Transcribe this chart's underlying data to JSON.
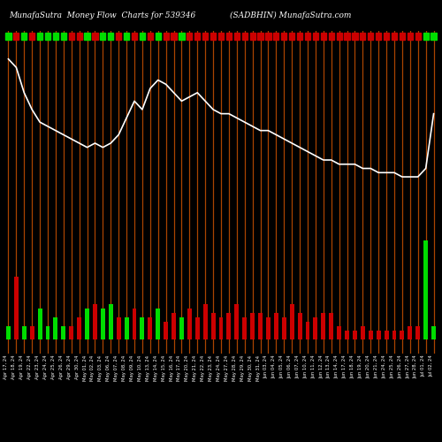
{
  "title_left": "MunafaSutra  Money Flow  Charts for 539346",
  "title_right": "(SADBHIN) MunafaSutra.com",
  "bg_color": "#000000",
  "line_color": "#ffffff",
  "bar_pos_color": "#00dd00",
  "bar_neg_color": "#cc0000",
  "vline_color": "#aa4400",
  "n_points": 55,
  "dates": [
    "Apr 17, 24",
    "Apr 18, 24",
    "Apr 19, 24",
    "Apr 22, 24",
    "Apr 23, 24",
    "Apr 24, 24",
    "Apr 25, 24",
    "Apr 26, 24",
    "Apr 29, 24",
    "Apr 30, 24",
    "May 01, 24",
    "May 02, 24",
    "May 03, 24",
    "May 06, 24",
    "May 07, 24",
    "May 08, 24",
    "May 09, 24",
    "May 10, 24",
    "May 13, 24",
    "May 14, 24",
    "May 15, 24",
    "May 16, 24",
    "May 17, 24",
    "May 20, 24",
    "May 21, 24",
    "May 22, 24",
    "May 23, 24",
    "May 24, 24",
    "May 27, 24",
    "May 28, 24",
    "May 29, 24",
    "May 30, 24",
    "May 31, 24",
    "Jun 03, 24",
    "Jun 04, 24",
    "Jun 05, 24",
    "Jun 06, 24",
    "Jun 07, 24",
    "Jun 10, 24",
    "Jun 11, 24",
    "Jun 12, 24",
    "Jun 13, 24",
    "Jun 14, 24",
    "Jun 17, 24",
    "Jun 18, 24",
    "Jun 19, 24",
    "Jun 20, 24",
    "Jun 21, 24",
    "Jun 24, 24",
    "Jun 25, 24",
    "Jun 26, 24",
    "Jun 27, 24",
    "Jun 28, 24",
    "Jul 01, 24",
    "Jul 02, 24"
  ],
  "line_values": [
    100,
    98,
    92,
    88,
    85,
    84,
    83,
    82,
    81,
    80,
    79,
    80,
    79,
    80,
    82,
    86,
    90,
    88,
    93,
    95,
    94,
    92,
    90,
    91,
    92,
    90,
    88,
    87,
    87,
    86,
    85,
    84,
    83,
    83,
    82,
    81,
    80,
    79,
    78,
    77,
    76,
    76,
    75,
    75,
    75,
    74,
    74,
    73,
    73,
    73,
    72,
    72,
    72,
    74,
    87
  ],
  "bar_values": [
    3,
    -14,
    3,
    -3,
    7,
    3,
    5,
    3,
    -3,
    -5,
    7,
    -8,
    7,
    8,
    -5,
    5,
    -7,
    5,
    -5,
    7,
    -4,
    -6,
    5,
    -7,
    -5,
    -8,
    -6,
    -5,
    -6,
    -8,
    -5,
    -6,
    -6,
    -5,
    -6,
    -5,
    -8,
    -6,
    -4,
    -5,
    -6,
    -6,
    -3,
    -2,
    -2,
    -3,
    -2,
    -2,
    -2,
    -2,
    -2,
    -3,
    -3,
    22,
    3
  ],
  "bar_colors": [
    "G",
    "R",
    "G",
    "R",
    "G",
    "G",
    "G",
    "G",
    "R",
    "R",
    "G",
    "R",
    "G",
    "G",
    "R",
    "G",
    "R",
    "G",
    "R",
    "G",
    "R",
    "R",
    "G",
    "R",
    "R",
    "R",
    "R",
    "R",
    "R",
    "R",
    "R",
    "R",
    "R",
    "R",
    "R",
    "R",
    "R",
    "R",
    "R",
    "R",
    "R",
    "R",
    "R",
    "R",
    "R",
    "R",
    "R",
    "R",
    "R",
    "R",
    "R",
    "R",
    "R",
    "G",
    "G"
  ]
}
